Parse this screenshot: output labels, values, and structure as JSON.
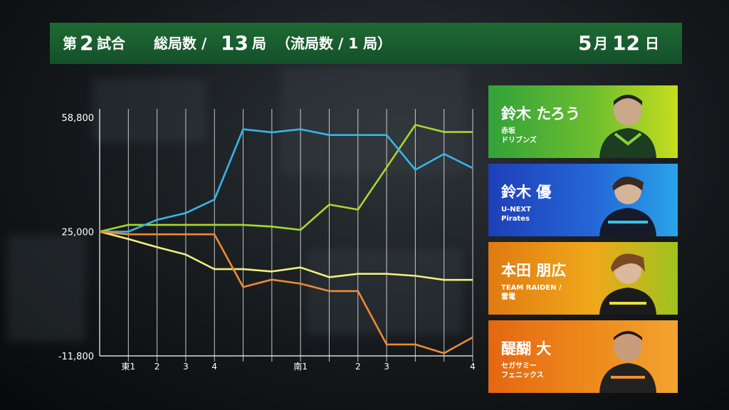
{
  "header": {
    "game_prefix": "第",
    "game_number": "2",
    "game_suffix": "試合",
    "hands_prefix": "総局数 /",
    "hands_number": "13",
    "hands_suffix": "局",
    "draws_text": "（流局数 / 1 局）",
    "date_month_num": "5",
    "date_month": "月",
    "date_day_num": "12",
    "date_day": "日"
  },
  "players": [
    {
      "name": "鈴木 たろう",
      "team_line1": "赤坂",
      "team_line2": "ドリブンズ",
      "color": "#a6d92a"
    },
    {
      "name": "鈴木 優",
      "team_line1": "U-NEXT",
      "team_line2": "Pirates",
      "color": "#38b4ea"
    },
    {
      "name": "本田 朋広",
      "team_line1": "TEAM RAIDEN /",
      "team_line2": "雷電",
      "color": "#f0f07a"
    },
    {
      "name": "醍醐 大",
      "team_line1": "セガサミー",
      "team_line2": "フェニックス",
      "color": "#ee8a34"
    }
  ],
  "chart_data": {
    "type": "line",
    "categories": [
      "",
      "東1",
      "2",
      "3",
      "4",
      "",
      "",
      "南1",
      "",
      "2",
      "3",
      "",
      "",
      "4"
    ],
    "x_tick_labels": [
      "東1",
      "2",
      "3",
      "4",
      "南1",
      "2",
      "3",
      "4"
    ],
    "y_tick_labels": [
      "58,800",
      "25,000",
      "-11,800"
    ],
    "ylim": [
      -11800,
      58800
    ],
    "grid": "vertical",
    "series": [
      {
        "name": "鈴木 たろう",
        "color": "#a6d92a",
        "values": [
          25000,
          27000,
          27000,
          27000,
          27000,
          27000,
          26500,
          25500,
          33000,
          31500,
          44000,
          56600,
          54500,
          54500
        ]
      },
      {
        "name": "鈴木 優",
        "color": "#38b4ea",
        "values": [
          25000,
          25000,
          28500,
          30500,
          34500,
          55300,
          54400,
          55300,
          53600,
          53600,
          53600,
          43300,
          48000,
          43800
        ]
      },
      {
        "name": "本田 朋広",
        "color": "#f0f07a",
        "values": [
          25000,
          22800,
          20400,
          18200,
          13900,
          13900,
          13200,
          14400,
          11500,
          12500,
          12500,
          11900,
          10700,
          10700
        ]
      },
      {
        "name": "醍醐 大",
        "color": "#ee8a34",
        "values": [
          25000,
          24200,
          24200,
          24200,
          24200,
          8600,
          10800,
          9600,
          7400,
          7400,
          -8400,
          -8400,
          -11000,
          -6300
        ]
      }
    ]
  }
}
